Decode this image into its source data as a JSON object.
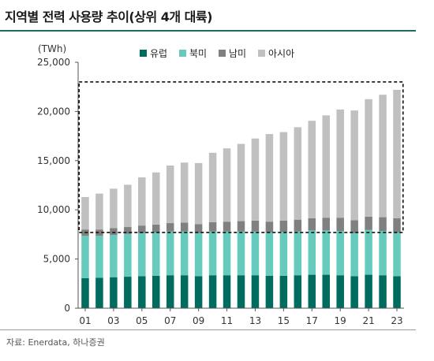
{
  "header": {
    "title": "지역별 전력 사용량 추이(상위 4개 대륙)"
  },
  "footer": {
    "source": "자료: Enerdata, 하나증권"
  },
  "chart_data": {
    "type": "bar",
    "stacked": true,
    "unit_label": "(TWh)",
    "categories": [
      "01",
      "02",
      "03",
      "04",
      "05",
      "06",
      "07",
      "08",
      "09",
      "10",
      "11",
      "12",
      "13",
      "14",
      "15",
      "16",
      "17",
      "18",
      "19",
      "20",
      "21",
      "22",
      "23"
    ],
    "x_tick_labels": [
      "01",
      "03",
      "05",
      "07",
      "09",
      "11",
      "13",
      "15",
      "17",
      "19",
      "21",
      "23"
    ],
    "ylim": [
      0,
      25000
    ],
    "y_ticks": [
      0,
      5000,
      10000,
      15000,
      20000,
      25000
    ],
    "y_tick_labels": [
      "0",
      "5,000",
      "10,000",
      "15,000",
      "20,000",
      "25,000"
    ],
    "legend_position": "top",
    "series": [
      {
        "name": "유럽",
        "color": "#006b5f",
        "values": [
          3050,
          3100,
          3150,
          3200,
          3250,
          3300,
          3350,
          3350,
          3250,
          3350,
          3350,
          3350,
          3350,
          3300,
          3300,
          3350,
          3400,
          3400,
          3350,
          3250,
          3400,
          3350,
          3250
        ]
      },
      {
        "name": "북미",
        "color": "#66cbbd",
        "values": [
          4300,
          4250,
          4300,
          4350,
          4400,
          4400,
          4450,
          4450,
          4400,
          4450,
          4450,
          4450,
          4450,
          4400,
          4450,
          4450,
          4500,
          4500,
          4500,
          4400,
          4550,
          4500,
          4450
        ]
      },
      {
        "name": "남미",
        "color": "#808080",
        "values": [
          650,
          650,
          700,
          700,
          750,
          800,
          850,
          900,
          900,
          950,
          1000,
          1050,
          1100,
          1100,
          1150,
          1200,
          1250,
          1300,
          1350,
          1300,
          1350,
          1400,
          1450
        ]
      },
      {
        "name": "아시아",
        "color": "#c0c0c0",
        "values": [
          3300,
          3650,
          4000,
          4300,
          4900,
          5300,
          5850,
          6100,
          6200,
          7050,
          7450,
          7850,
          8350,
          8900,
          9000,
          9400,
          9900,
          10400,
          11000,
          11150,
          11950,
          12450,
          13050
        ]
      }
    ],
    "annotations": [
      {
        "type": "dashed-box",
        "x_range": [
          "01",
          "23"
        ],
        "y_range": [
          7700,
          23000
        ]
      }
    ]
  }
}
